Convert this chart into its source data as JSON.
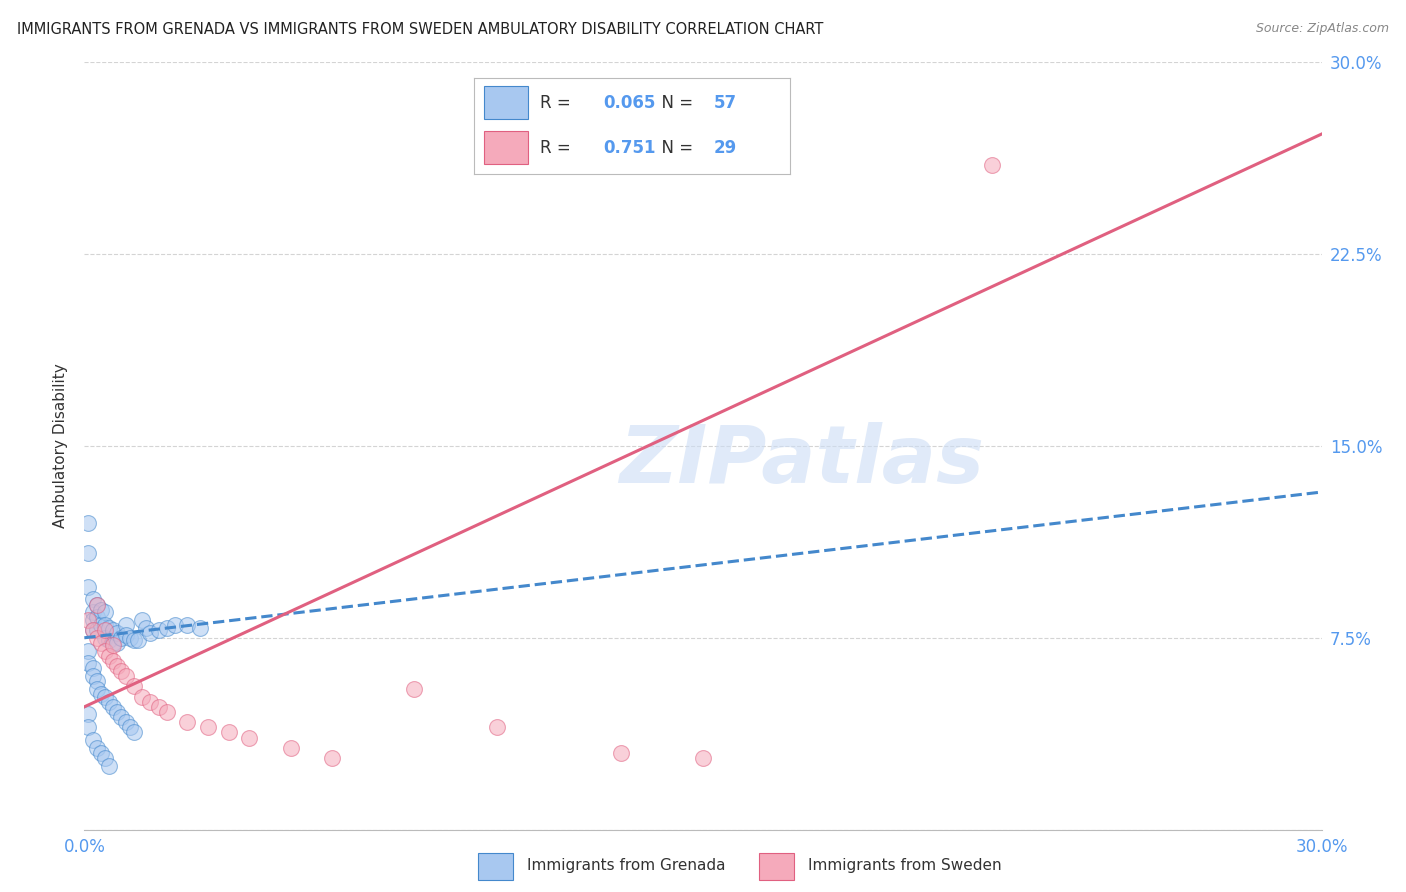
{
  "title": "IMMIGRANTS FROM GRENADA VS IMMIGRANTS FROM SWEDEN AMBULATORY DISABILITY CORRELATION CHART",
  "source": "Source: ZipAtlas.com",
  "ylabel": "Ambulatory Disability",
  "xlim": [
    0.0,
    0.3
  ],
  "ylim": [
    0.0,
    0.3
  ],
  "xticks": [
    0.0,
    0.05,
    0.1,
    0.15,
    0.2,
    0.25,
    0.3
  ],
  "yticks": [
    0.0,
    0.075,
    0.15,
    0.225,
    0.3
  ],
  "xtick_labels": [
    "0.0%",
    "",
    "",
    "",
    "",
    "",
    "30.0%"
  ],
  "ytick_labels_right": [
    "",
    "7.5%",
    "15.0%",
    "22.5%",
    "30.0%"
  ],
  "background_color": "#ffffff",
  "grid_color": "#d0d0d0",
  "watermark": "ZIPatlas",
  "legend_R_grenada": "0.065",
  "legend_N_grenada": "57",
  "legend_R_sweden": "0.751",
  "legend_N_sweden": "29",
  "grenada_color": "#a8c8f0",
  "sweden_color": "#f5aabb",
  "grenada_line_color": "#4488cc",
  "sweden_line_color": "#e06080",
  "tick_color": "#5599ee",
  "scatter_grenada_x": [
    0.001,
    0.001,
    0.001,
    0.002,
    0.002,
    0.002,
    0.002,
    0.003,
    0.003,
    0.003,
    0.004,
    0.004,
    0.005,
    0.005,
    0.005,
    0.006,
    0.006,
    0.007,
    0.007,
    0.008,
    0.008,
    0.009,
    0.01,
    0.01,
    0.011,
    0.012,
    0.013,
    0.014,
    0.015,
    0.016,
    0.018,
    0.02,
    0.022,
    0.025,
    0.028,
    0.001,
    0.001,
    0.002,
    0.002,
    0.003,
    0.003,
    0.004,
    0.005,
    0.006,
    0.007,
    0.008,
    0.009,
    0.01,
    0.011,
    0.012,
    0.001,
    0.001,
    0.002,
    0.003,
    0.004,
    0.005,
    0.006
  ],
  "scatter_grenada_y": [
    0.12,
    0.108,
    0.095,
    0.09,
    0.085,
    0.082,
    0.078,
    0.088,
    0.083,
    0.078,
    0.086,
    0.08,
    0.085,
    0.08,
    0.075,
    0.079,
    0.074,
    0.078,
    0.073,
    0.077,
    0.073,
    0.075,
    0.08,
    0.076,
    0.075,
    0.074,
    0.074,
    0.082,
    0.079,
    0.077,
    0.078,
    0.079,
    0.08,
    0.08,
    0.079,
    0.07,
    0.065,
    0.063,
    0.06,
    0.058,
    0.055,
    0.053,
    0.052,
    0.05,
    0.048,
    0.046,
    0.044,
    0.042,
    0.04,
    0.038,
    0.045,
    0.04,
    0.035,
    0.032,
    0.03,
    0.028,
    0.025
  ],
  "scatter_sweden_x": [
    0.001,
    0.002,
    0.003,
    0.004,
    0.005,
    0.006,
    0.007,
    0.008,
    0.009,
    0.01,
    0.012,
    0.014,
    0.016,
    0.018,
    0.02,
    0.025,
    0.03,
    0.035,
    0.04,
    0.05,
    0.06,
    0.08,
    0.1,
    0.13,
    0.15,
    0.22,
    0.003,
    0.005,
    0.007
  ],
  "scatter_sweden_y": [
    0.082,
    0.078,
    0.075,
    0.073,
    0.07,
    0.068,
    0.066,
    0.064,
    0.062,
    0.06,
    0.056,
    0.052,
    0.05,
    0.048,
    0.046,
    0.042,
    0.04,
    0.038,
    0.036,
    0.032,
    0.028,
    0.055,
    0.04,
    0.03,
    0.028,
    0.26,
    0.088,
    0.078,
    0.072
  ],
  "grenada_trendline_x": [
    0.0,
    0.3
  ],
  "grenada_trendline_y": [
    0.075,
    0.132
  ],
  "sweden_trendline_x": [
    0.0,
    0.3
  ],
  "sweden_trendline_y": [
    0.048,
    0.272
  ]
}
